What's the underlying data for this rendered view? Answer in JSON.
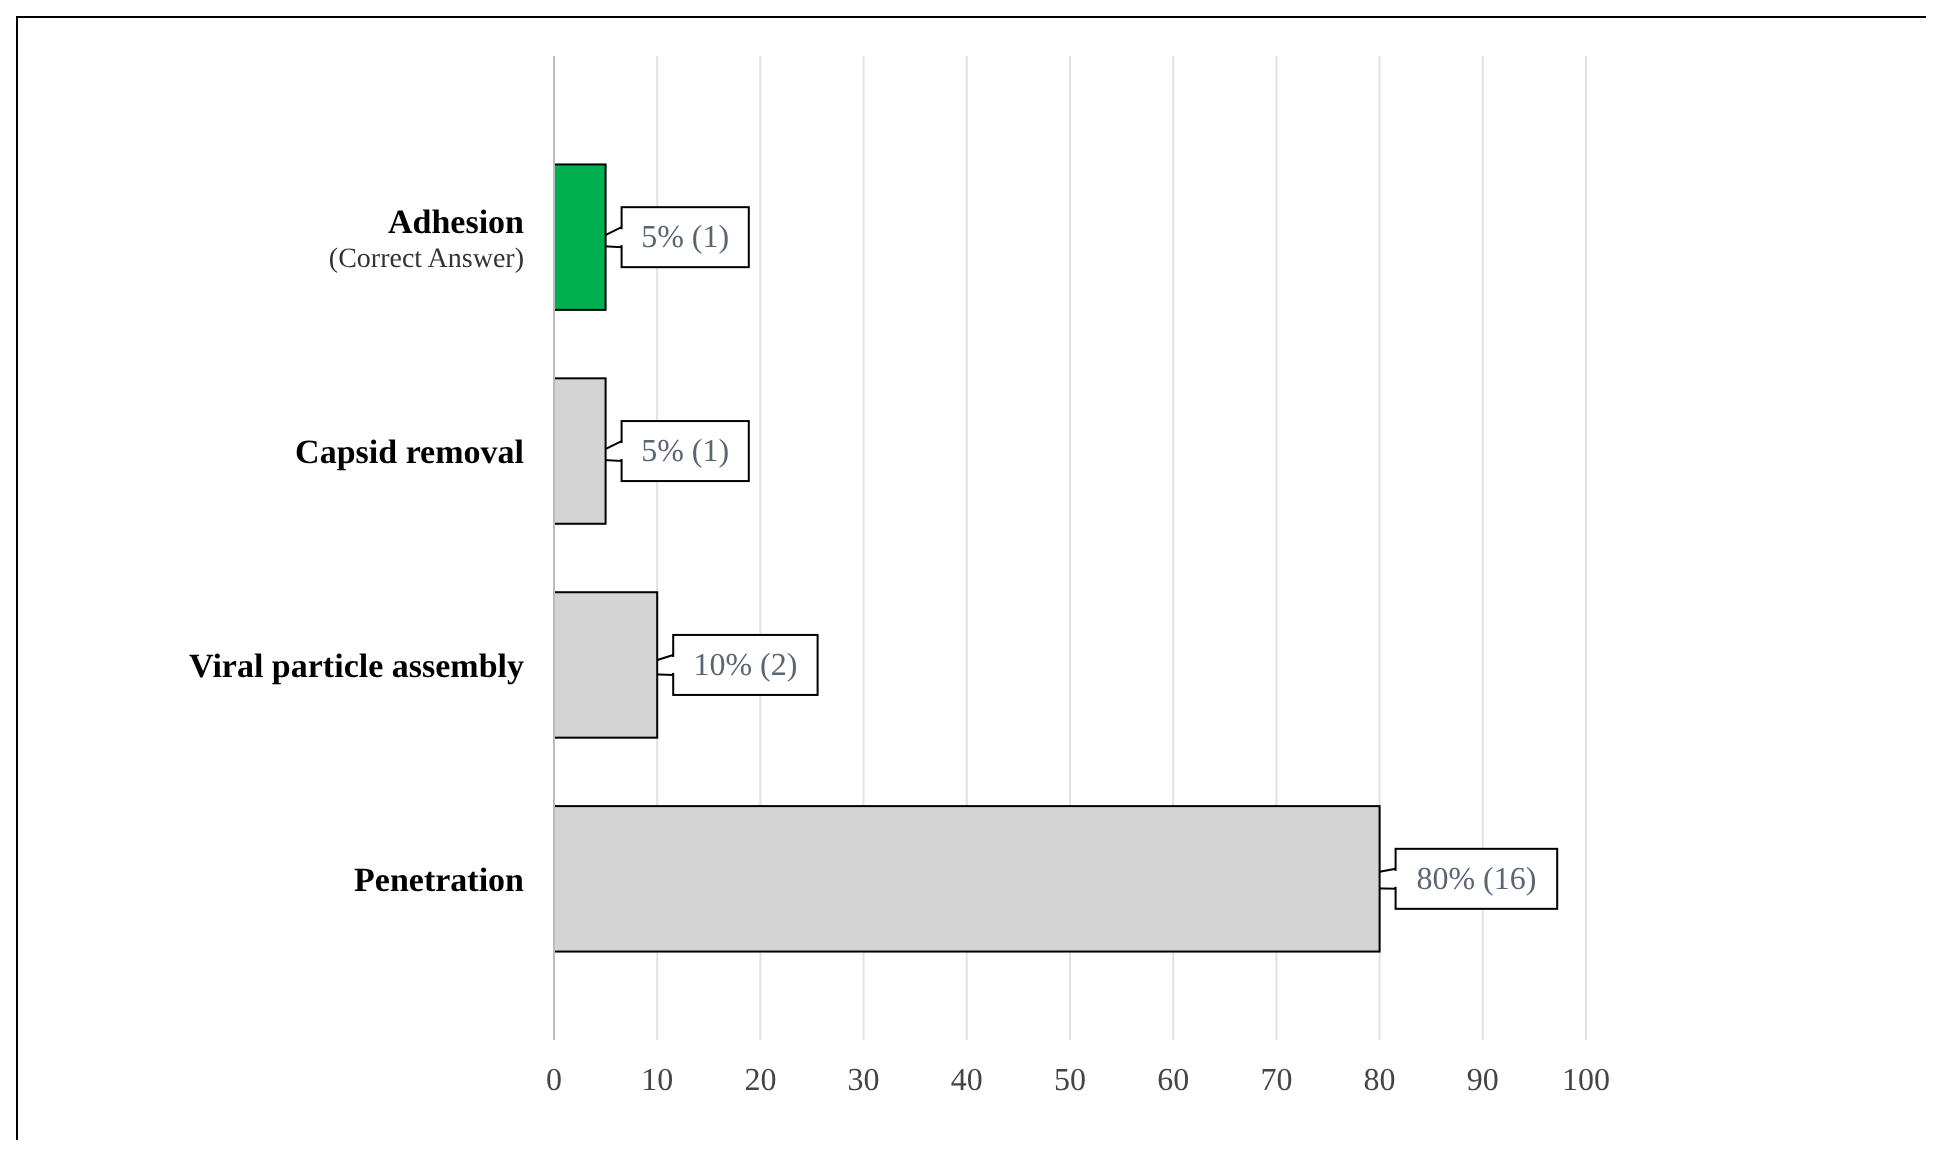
{
  "chart_data": {
    "type": "bar",
    "orientation": "horizontal",
    "categories": [
      "Adhesion\n(Correct Answer)",
      "Capsid removal",
      "Viral particle assembly",
      "Penetration"
    ],
    "values": [
      5,
      5,
      10,
      80
    ],
    "colors": [
      "#00b050",
      "#d4d4d4",
      "#d4d4d4",
      "#d4d4d4"
    ],
    "value_labels": [
      "5% (1)",
      "5% (1)",
      "10% (2)",
      "80% (16)"
    ],
    "xlim": [
      0,
      100
    ],
    "xticks": [
      0,
      10,
      20,
      30,
      40,
      50,
      60,
      70,
      80,
      90,
      100
    ],
    "grid": "x"
  }
}
